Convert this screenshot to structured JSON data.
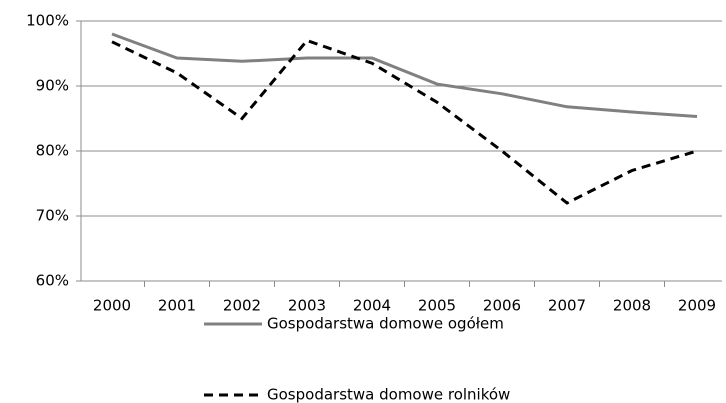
{
  "chart_data": {
    "type": "line",
    "categories": [
      "2000",
      "2001",
      "2002",
      "2003",
      "2004",
      "2005",
      "2006",
      "2007",
      "2008",
      "2009"
    ],
    "series": [
      {
        "name": "Gospodarstwa domowe ogółem",
        "color": "#808080",
        "dash": false,
        "values": [
          98,
          94.3,
          93.8,
          94.3,
          94.3,
          90.3,
          88.8,
          86.8,
          86,
          85.3
        ]
      },
      {
        "name": "Gospodarstwa domowe rolników",
        "color": "#000000",
        "dash": true,
        "values": [
          96.8,
          92,
          85,
          97,
          93.5,
          87.5,
          80,
          72,
          77,
          80
        ]
      }
    ],
    "ylim": [
      60,
      100
    ],
    "yticks": [
      {
        "value": 60,
        "label": "60%"
      },
      {
        "value": 70,
        "label": "70%"
      },
      {
        "value": 80,
        "label": "80%"
      },
      {
        "value": 90,
        "label": "90%"
      },
      {
        "value": 100,
        "label": "100%"
      }
    ],
    "grid": true,
    "legend": "bottom"
  }
}
